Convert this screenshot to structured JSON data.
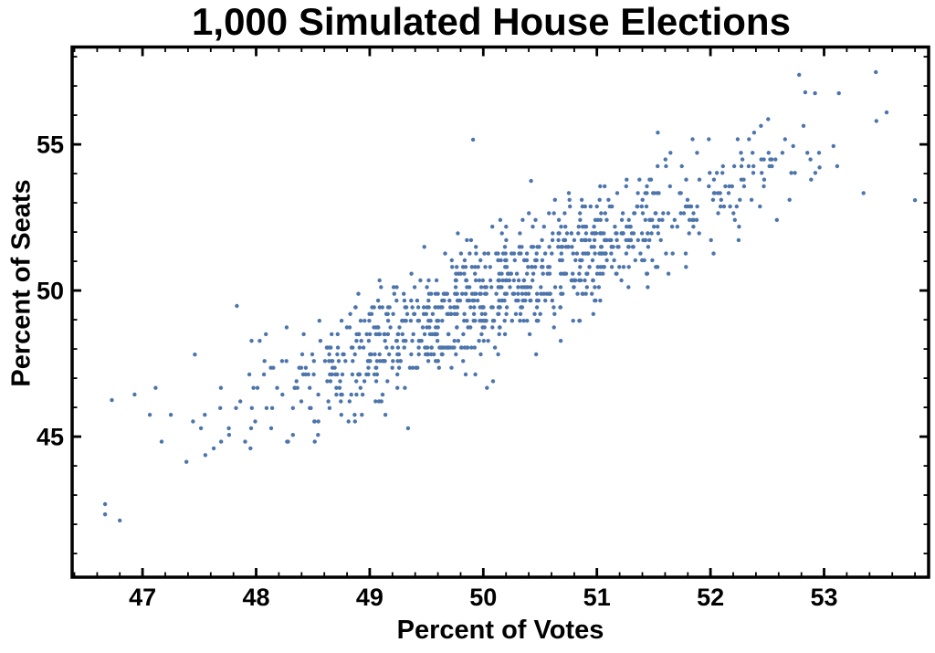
{
  "chart_data": {
    "type": "scatter",
    "title": "1,000 Simulated House Elections",
    "xlabel": "Percent of Votes",
    "ylabel": "Percent of Seats",
    "xlim": [
      46.38,
      53.92
    ],
    "ylim": [
      40.19,
      58.33
    ],
    "x_major_ticks": [
      47,
      48,
      49,
      50,
      51,
      52,
      53
    ],
    "x_minor_step": 0.2,
    "y_major_ticks": [
      45,
      50,
      55
    ],
    "y_minor_step": 1,
    "grid": false,
    "legend": false,
    "frame": true,
    "frame_color": "#000000",
    "text_color": "#000000",
    "n_points": 1000,
    "point_color": "#4d75ab",
    "point_radius": 2.2,
    "x_observed_range": [
      46.6,
      53.81
    ],
    "y_observed_range": [
      41.9,
      57.4
    ],
    "anchor_points": [
      [
        46.67,
        42.69
      ],
      [
        46.67,
        42.34
      ],
      [
        46.8,
        42.13
      ],
      [
        46.73,
        46.25
      ],
      [
        46.93,
        46.44
      ],
      [
        47.46,
        47.81
      ],
      [
        47.83,
        49.47
      ],
      [
        49.91,
        55.16
      ],
      [
        50.42,
        53.75
      ],
      [
        52.78,
        57.38
      ],
      [
        52.92,
        56.75
      ],
      [
        53.13,
        56.75
      ],
      [
        52.96,
        54.21
      ],
      [
        53.46,
        55.8
      ],
      [
        53.8,
        53.09
      ]
    ],
    "generator": {
      "seed": 42,
      "n": 985,
      "x_mean": 50.15,
      "x_sd": 1.22,
      "x_range": [
        46.55,
        53.85
      ],
      "slope": 1.75,
      "pivot": [
        50.15,
        50.0
      ],
      "noise_sd": 1.0,
      "seat_quantum": 0.2298850575,
      "y_range": [
        41.2,
        57.9
      ]
    }
  }
}
